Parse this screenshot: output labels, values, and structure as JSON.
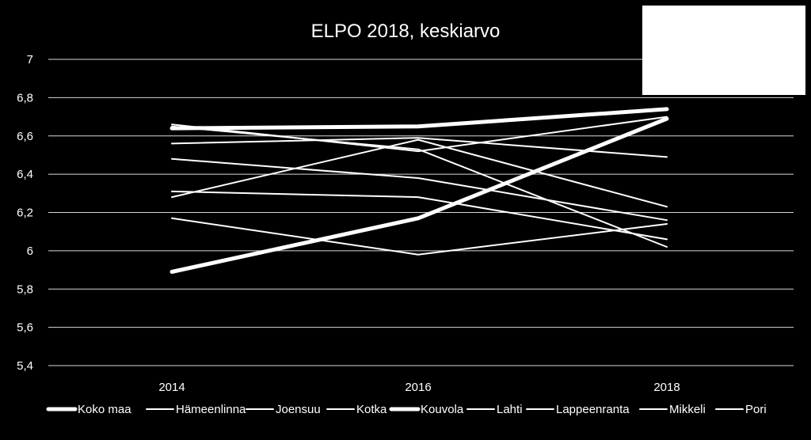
{
  "chart_data": {
    "type": "line",
    "title": "ELPO 2018, keskiarvo",
    "xlabel": "",
    "ylabel": "",
    "categories": [
      "2014",
      "2016",
      "2018"
    ],
    "ylim": [
      5.4,
      7
    ],
    "yticks": [
      "5,4",
      "5,6",
      "5,8",
      "6",
      "6,2",
      "6,4",
      "6,6",
      "6,8",
      "7"
    ],
    "grid": true,
    "legend_position": "bottom",
    "series": [
      {
        "name": "Koko maa",
        "values": [
          6.64,
          6.65,
          6.74
        ],
        "emphasis": true
      },
      {
        "name": "Hämeenlinna",
        "values": [
          6.66,
          6.52,
          6.7
        ],
        "emphasis": false
      },
      {
        "name": "Joensuu",
        "values": [
          6.56,
          6.59,
          6.49
        ],
        "emphasis": false
      },
      {
        "name": "Kotka",
        "values": [
          6.48,
          6.38,
          6.16
        ],
        "emphasis": false
      },
      {
        "name": "Kouvola",
        "values": [
          5.89,
          6.17,
          6.69
        ],
        "emphasis": true
      },
      {
        "name": "Lahti",
        "values": [
          6.31,
          6.28,
          6.06
        ],
        "emphasis": false
      },
      {
        "name": "Lappeenranta",
        "values": [
          6.17,
          5.98,
          6.14
        ],
        "emphasis": false
      },
      {
        "name": "Mikkeli",
        "values": [
          6.28,
          6.58,
          6.23
        ],
        "emphasis": false
      },
      {
        "name": "Pori",
        "values": [
          6.65,
          6.53,
          6.02
        ],
        "emphasis": false
      }
    ],
    "colors": {
      "background": "#000000",
      "line": "#ffffff",
      "grid": "#d9d9d9"
    }
  }
}
